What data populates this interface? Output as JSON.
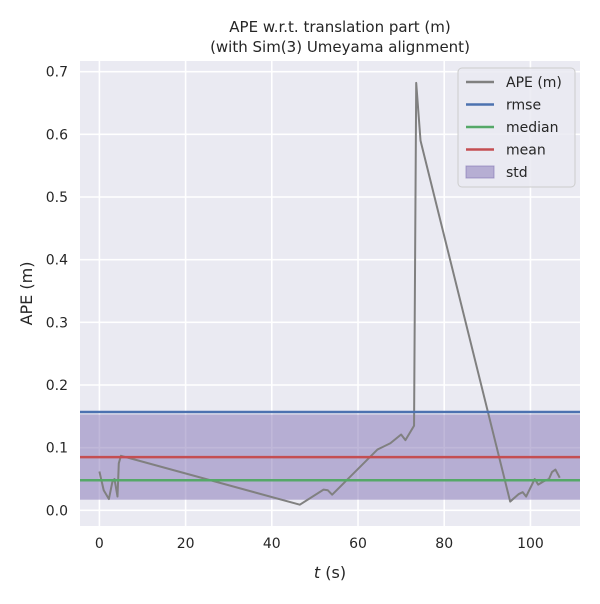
{
  "chart_data": {
    "type": "line",
    "title": "APE w.r.t. translation part (m)",
    "subtitle": "(with Sim(3) Umeyama alignment)",
    "xlabel_italic": "t",
    "xlabel_rest": " (s)",
    "ylabel": "APE (m)",
    "xlim": [
      -4.5,
      111.5
    ],
    "ylim": [
      -0.025,
      0.717
    ],
    "xticks": [
      0,
      20,
      40,
      60,
      80,
      100
    ],
    "xtick_labels": [
      "0",
      "20",
      "40",
      "60",
      "80",
      "100"
    ],
    "yticks": [
      0.0,
      0.1,
      0.2,
      0.3,
      0.4,
      0.5,
      0.6,
      0.7
    ],
    "ytick_labels": [
      "0.0",
      "0.1",
      "0.2",
      "0.3",
      "0.4",
      "0.5",
      "0.6",
      "0.7"
    ],
    "grid": true,
    "legend_position": "top-right",
    "series": {
      "name": "APE (m)",
      "color": "#808080",
      "x": [
        0,
        1,
        2.2,
        3,
        3.5,
        4.2,
        4.5,
        5,
        46.5,
        52,
        53,
        54,
        64.5,
        67.5,
        70,
        71,
        73,
        73.5,
        74.5,
        95.3,
        97.3,
        98.2,
        99,
        101,
        101.8,
        103,
        104.3,
        105,
        105.8,
        106.8
      ],
      "y": [
        0.062,
        0.032,
        0.018,
        0.045,
        0.05,
        0.022,
        0.075,
        0.087,
        0.009,
        0.033,
        0.032,
        0.025,
        0.097,
        0.107,
        0.121,
        0.112,
        0.135,
        0.682,
        0.59,
        0.014,
        0.026,
        0.029,
        0.022,
        0.05,
        0.041,
        0.046,
        0.05,
        0.061,
        0.065,
        0.052
      ]
    },
    "stats": {
      "rmse": 0.157,
      "median": 0.048,
      "mean": 0.085,
      "std": 0.068
    },
    "legend": [
      {
        "label": "APE (m)",
        "kind": "line",
        "color": "#808080"
      },
      {
        "label": "rmse",
        "kind": "line",
        "color": "#4c72b0"
      },
      {
        "label": "median",
        "kind": "line",
        "color": "#55a868"
      },
      {
        "label": "mean",
        "kind": "line",
        "color": "#c44e52"
      },
      {
        "label": "std",
        "kind": "patch",
        "color": "#8172b3"
      }
    ],
    "colors": {
      "background": "#eaeaf2",
      "grid": "#ffffff",
      "rmse": "#4c72b0",
      "median": "#55a868",
      "mean": "#c44e52",
      "std": "#8172b3"
    }
  }
}
